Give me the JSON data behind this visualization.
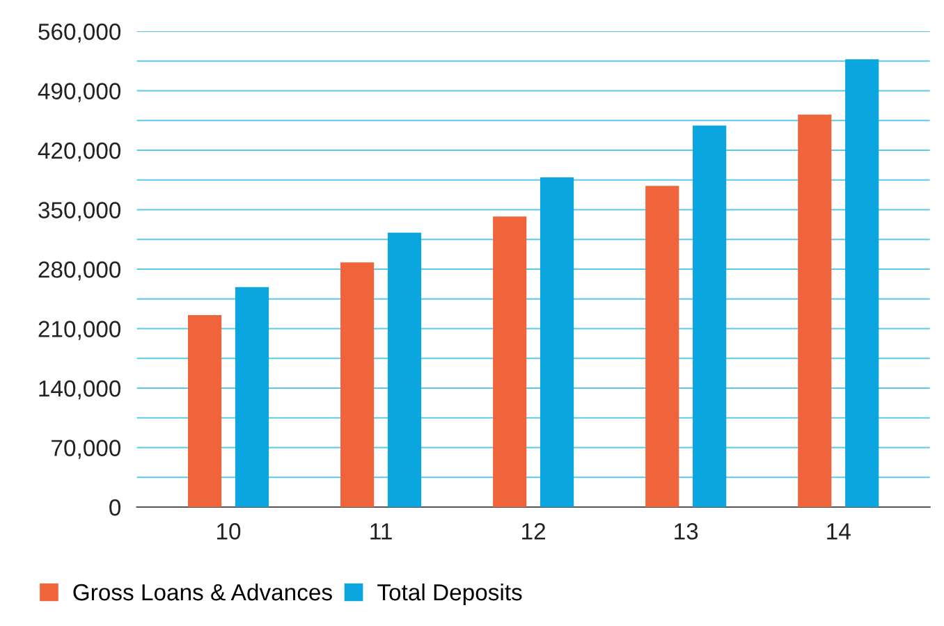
{
  "chart_data": {
    "type": "bar",
    "categories": [
      "10",
      "11",
      "12",
      "13",
      "14"
    ],
    "series": [
      {
        "name": "Gross Loans & Advances",
        "color": "#f0643c",
        "values": [
          226000,
          288000,
          342000,
          378000,
          462000
        ]
      },
      {
        "name": "Total Deposits",
        "color": "#0ba5e0",
        "values": [
          259000,
          323000,
          388000,
          449000,
          527000
        ]
      }
    ],
    "ylim": [
      0,
      560000
    ],
    "yticks": [
      0,
      {
        "value": 35000,
        "label": null
      },
      {
        "value": 70000,
        "label": "70,000"
      },
      {
        "value": 105000,
        "label": null
      },
      {
        "value": 140000,
        "label": "140,000"
      },
      {
        "value": 175000,
        "label": null
      },
      {
        "value": 210000,
        "label": "210,000"
      },
      {
        "value": 245000,
        "label": null
      },
      {
        "value": 280000,
        "label": "280,000"
      },
      {
        "value": 315000,
        "label": null
      },
      {
        "value": 350000,
        "label": "350,000"
      },
      {
        "value": 385000,
        "label": null
      },
      {
        "value": 420000,
        "label": "420,000"
      },
      {
        "value": 455000,
        "label": null
      },
      {
        "value": 490000,
        "label": "490,000"
      },
      {
        "value": 525000,
        "label": null
      },
      {
        "value": 560000,
        "label": "560,000"
      }
    ],
    "grid": "y",
    "legend": "bottom left"
  }
}
